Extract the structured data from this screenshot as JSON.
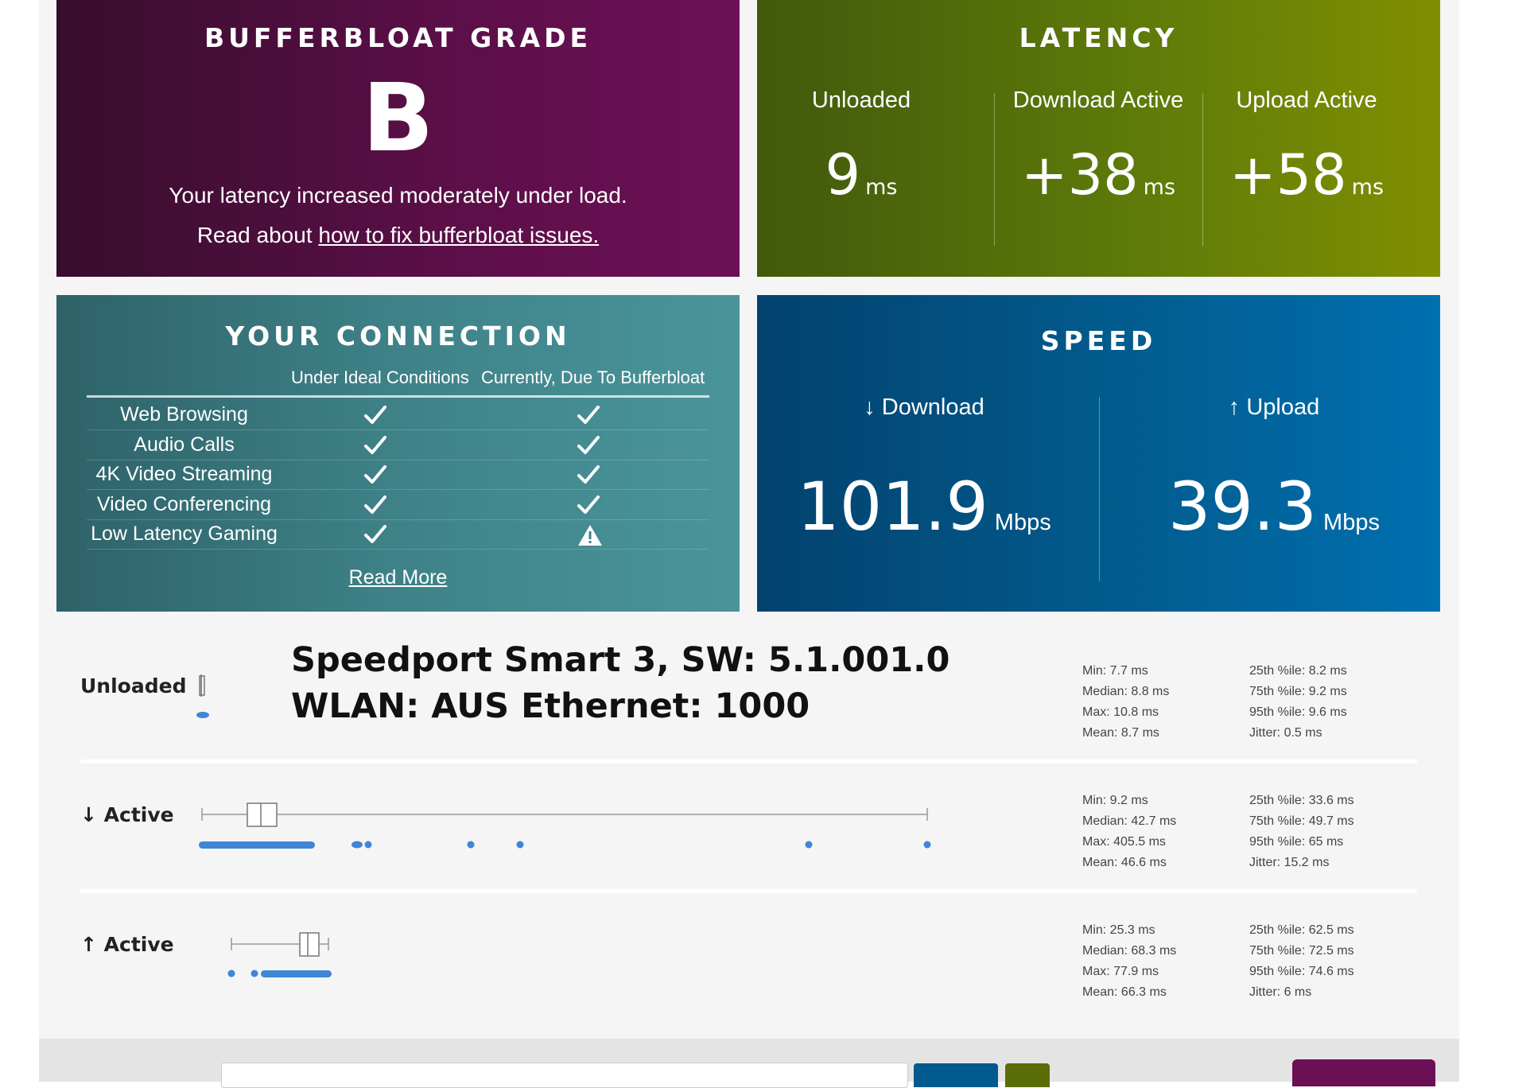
{
  "grade_card": {
    "title": "BUFFERBLOAT GRADE",
    "grade": "B",
    "summary": "Your latency increased moderately under load.",
    "read_prefix": "Read about ",
    "read_link": "how to fix bufferbloat issues."
  },
  "latency_card": {
    "title": "LATENCY",
    "columns": [
      {
        "label": "Unloaded",
        "value": "9",
        "unit": "ms"
      },
      {
        "label": "Download Active",
        "value": "+38",
        "unit": "ms"
      },
      {
        "label": "Upload Active",
        "value": "+58",
        "unit": "ms"
      }
    ]
  },
  "connection_card": {
    "title": "YOUR CONNECTION",
    "col_ideal": "Under Ideal Conditions",
    "col_current": "Currently, Due To Bufferbloat",
    "rows": [
      {
        "name": "Web Browsing",
        "ideal": "check",
        "current": "check"
      },
      {
        "name": "Audio Calls",
        "ideal": "check",
        "current": "check"
      },
      {
        "name": "4K Video Streaming",
        "ideal": "check",
        "current": "check"
      },
      {
        "name": "Video Conferencing",
        "ideal": "check",
        "current": "check"
      },
      {
        "name": "Low Latency Gaming",
        "ideal": "check",
        "current": "warning"
      }
    ],
    "read_more": "Read More"
  },
  "speed_card": {
    "title": "SPEED",
    "download": {
      "label": "↓ Download",
      "value": "101.9",
      "unit": "Mbps"
    },
    "upload": {
      "label": "↑ Upload",
      "value": "39.3",
      "unit": "Mbps"
    }
  },
  "router_note": {
    "line1": "Speedport Smart 3, SW: 5.1.001.0",
    "line2": "WLAN: AUS Ethernet: 1000"
  },
  "latency_details": [
    {
      "label": "Unloaded",
      "stats_left": [
        "Min: 7.7 ms",
        "Median: 8.8 ms",
        "Max: 10.8 ms",
        "Mean: 8.7 ms"
      ],
      "stats_right": [
        "25th %ile: 8.2 ms",
        "75th %ile: 9.2 ms",
        "95th %ile: 9.6 ms",
        "Jitter: 0.5 ms"
      ]
    },
    {
      "label": "↓ Active",
      "stats_left": [
        "Min: 9.2 ms",
        "Median: 42.7 ms",
        "Max: 405.5 ms",
        "Mean: 46.6 ms"
      ],
      "stats_right": [
        "25th %ile: 33.6 ms",
        "75th %ile: 49.7 ms",
        "95th %ile: 65 ms",
        "Jitter: 15.2 ms"
      ]
    },
    {
      "label": "↑ Active",
      "stats_left": [
        "Min: 25.3 ms",
        "Median: 68.3 ms",
        "Max: 77.9 ms",
        "Mean: 66.3 ms"
      ],
      "stats_right": [
        "25th %ile: 62.5 ms",
        "75th %ile: 72.5 ms",
        "95th %ile: 74.6 ms",
        "Jitter: 6 ms"
      ]
    }
  ],
  "colors": {
    "grade_bg": "#5a0f47",
    "latency_bg": "#5e7a09",
    "connection_bg": "#3e8288",
    "speed_bg": "#025c8f",
    "dot_color": "#3f86d6"
  }
}
